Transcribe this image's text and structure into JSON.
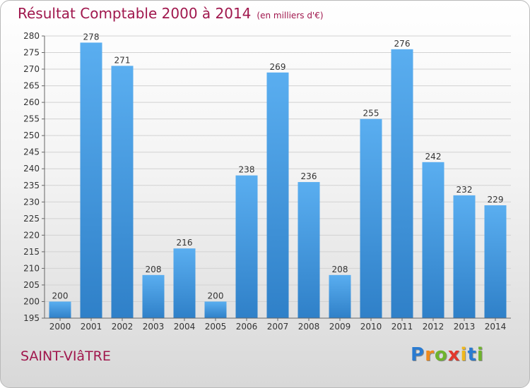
{
  "chart_data": {
    "type": "bar",
    "title": "Résultat Comptable 2000 à 2014",
    "unit_label": "(en milliers d'€)",
    "categories": [
      "2000",
      "2001",
      "2002",
      "2003",
      "2004",
      "2005",
      "2006",
      "2007",
      "2008",
      "2009",
      "2010",
      "2011",
      "2012",
      "2013",
      "2014"
    ],
    "values": [
      200,
      278,
      271,
      208,
      216,
      200,
      238,
      269,
      236,
      208,
      255,
      276,
      242,
      232,
      229
    ],
    "ylim": [
      195,
      280
    ],
    "ytick_step": 5,
    "xlabel": "",
    "ylabel": "",
    "grid": true,
    "bar_color": "#4a9ee0"
  },
  "commune": "SAINT-VIâTRE",
  "logo": {
    "letters": [
      "P",
      "r",
      "o",
      "x",
      "i",
      "t",
      "i"
    ],
    "colors": [
      "#2a7bd1",
      "#f08a1c",
      "#6fb42c",
      "#e2382c",
      "#f0b81c",
      "#2a7bd1",
      "#6fb42c"
    ]
  }
}
